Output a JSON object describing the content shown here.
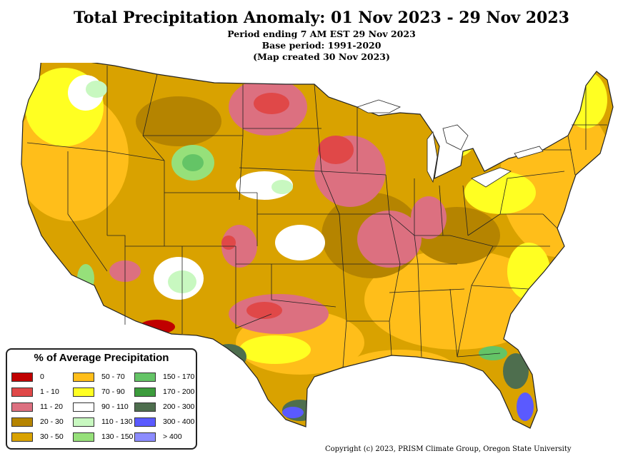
{
  "header": {
    "title": "Total Precipitation Anomaly: 01 Nov 2023 - 29 Nov 2023",
    "period": "Period ending 7 AM EST 29 Nov 2023",
    "base": "Base period: 1991-2020",
    "created": "(Map created 30 Nov 2023)"
  },
  "legend": {
    "title": "% of Average Precipitation",
    "items": [
      {
        "label": "0",
        "color": "#c00000"
      },
      {
        "label": "1 - 10",
        "color": "#e04848"
      },
      {
        "label": "11 - 20",
        "color": "#dc7080"
      },
      {
        "label": "20 - 30",
        "color": "#b58400"
      },
      {
        "label": "30 - 50",
        "color": "#d9a200"
      },
      {
        "label": "50 - 70",
        "color": "#ffbe1a"
      },
      {
        "label": "70 - 90",
        "color": "#ffff22"
      },
      {
        "label": "90 - 110",
        "color": "#ffffff"
      },
      {
        "label": "110 - 130",
        "color": "#c8f8c0"
      },
      {
        "label": "130 - 150",
        "color": "#96e07a"
      },
      {
        "label": "150 - 170",
        "color": "#64c466"
      },
      {
        "label": "170 - 200",
        "color": "#3c9c3c"
      },
      {
        "label": "200 - 300",
        "color": "#4e6e4e"
      },
      {
        "label": "300 - 400",
        "color": "#5a5aff"
      },
      {
        "label": "> 400",
        "color": "#8c8cff"
      }
    ]
  },
  "copyright": "Copyright (c) 2023, PRISM Climate Group, Oregon State University"
}
